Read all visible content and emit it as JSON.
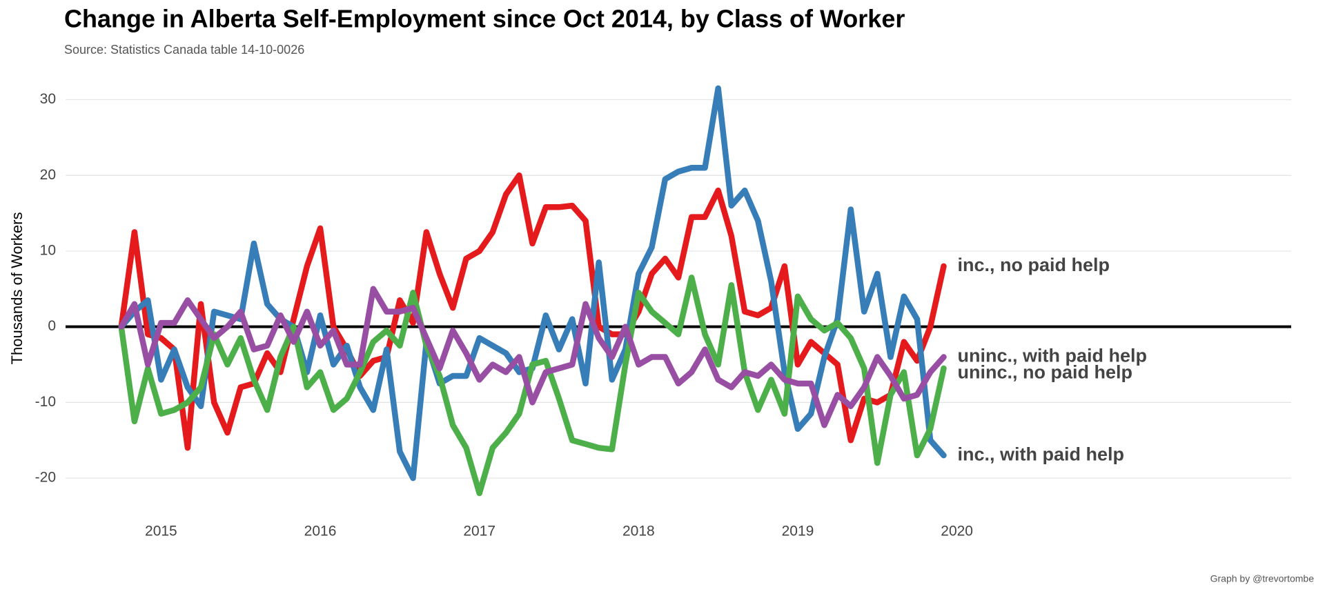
{
  "chart_data": {
    "type": "line",
    "title": "Change in Alberta Self-Employment since Oct 2014, by Class of Worker",
    "subtitle": "Source: Statistics Canada table 14-10-0026",
    "caption": "Graph by @trevortombe",
    "y_label": "Thousands of Workers",
    "x": [
      2014.75,
      2014.833,
      2014.917,
      2015,
      2015.083,
      2015.167,
      2015.25,
      2015.333,
      2015.417,
      2015.5,
      2015.583,
      2015.667,
      2015.75,
      2015.833,
      2015.917,
      2016,
      2016.083,
      2016.167,
      2016.25,
      2016.333,
      2016.417,
      2016.5,
      2016.583,
      2016.667,
      2016.75,
      2016.833,
      2016.917,
      2017,
      2017.083,
      2017.167,
      2017.25,
      2017.333,
      2017.417,
      2017.5,
      2017.583,
      2017.667,
      2017.75,
      2017.833,
      2017.917,
      2018,
      2018.083,
      2018.167,
      2018.25,
      2018.333,
      2018.417,
      2018.5,
      2018.583,
      2018.667,
      2018.75,
      2018.833,
      2018.917,
      2019,
      2019.083,
      2019.167,
      2019.25,
      2019.333,
      2019.417,
      2019.5,
      2019.583,
      2019.667,
      2019.75,
      2019.833,
      2019.917
    ],
    "series": [
      {
        "name": "inc., no paid help",
        "color": "#e41a1c",
        "values": [
          0,
          12.5,
          -1,
          -1.5,
          -3,
          -16,
          3,
          -10,
          -14,
          -8,
          -7.5,
          -3.5,
          -6,
          1,
          8,
          13,
          0,
          -3,
          -6.5,
          -4.5,
          -4,
          3.5,
          0.5,
          12.5,
          7,
          2.5,
          9,
          10,
          12.5,
          17.5,
          20,
          11,
          15.8,
          15.8,
          16,
          14,
          0,
          -1,
          -1,
          2,
          7,
          9,
          6.5,
          14.5,
          14.5,
          18,
          12,
          2,
          1.5,
          2.5,
          8,
          -5,
          -2,
          -3.5,
          -5,
          -15,
          -9.5,
          -10,
          -9,
          -2,
          -4.5,
          0,
          8
        ]
      },
      {
        "name": "inc., with paid help",
        "color": "#377eb8",
        "values": [
          0,
          2,
          3.5,
          -7,
          -3,
          -8,
          -10.5,
          2,
          1.5,
          1,
          11,
          3,
          1,
          0,
          -6,
          1.5,
          -5,
          -2.5,
          -8,
          -11,
          -3,
          -16.5,
          -20,
          -2,
          -7.5,
          -6.5,
          -6.5,
          -1.5,
          -2.5,
          -3.5,
          -6,
          -5.5,
          1.5,
          -3,
          1,
          -7.5,
          8.5,
          -7,
          -3,
          7,
          10.5,
          19.5,
          20.5,
          21,
          21,
          31.5,
          16,
          18,
          14,
          6,
          -6,
          -13.5,
          -11.5,
          -4,
          1,
          15.5,
          2,
          7,
          -4,
          4,
          1,
          -15,
          -17
        ]
      },
      {
        "name": "uninc., no paid help",
        "color": "#4daf4a",
        "values": [
          0,
          -12.5,
          -5.5,
          -11.5,
          -11,
          -10,
          -8,
          -1,
          -5,
          -1.5,
          -7,
          -11,
          -4,
          0,
          -8,
          -6,
          -11,
          -9.5,
          -6,
          -2,
          -0.5,
          -2.5,
          4.5,
          -2.5,
          -6.5,
          -13,
          -16,
          -22,
          -16,
          -14,
          -11.5,
          -5,
          -4.5,
          -9.5,
          -15,
          -15.5,
          -16,
          -16.2,
          -5,
          4.5,
          2,
          0.5,
          -1,
          6.5,
          -1,
          -5,
          5.5,
          -6,
          -11,
          -7,
          -11.5,
          4,
          1,
          -0.5,
          0.5,
          -1.5,
          -5.5,
          -18,
          -9,
          -6,
          -17,
          -13.5,
          -5.5
        ]
      },
      {
        "name": "uninc., with paid help",
        "color": "#984ea3",
        "values": [
          0,
          3,
          -5,
          0.5,
          0.5,
          3.5,
          1,
          -1.5,
          0,
          2,
          -3,
          -2.5,
          1.5,
          -2,
          2,
          -2.5,
          -0.5,
          -5,
          -5,
          5,
          2,
          2,
          2.5,
          -1.5,
          -5.5,
          -0.5,
          -3.5,
          -7,
          -5,
          -6,
          -4,
          -10,
          -6,
          -5.5,
          -5,
          3,
          -1.5,
          -4,
          0,
          -5,
          -4,
          -4,
          -7.5,
          -6,
          -3,
          -7,
          -8,
          -6,
          -6.5,
          -5,
          -7,
          -7.5,
          -7.5,
          -13,
          -9,
          -10.5,
          -8,
          -4,
          -6.5,
          -9.5,
          -9,
          -6,
          -4
        ]
      }
    ],
    "xlim": [
      2014.4,
      2022.1
    ],
    "xticks": [
      2015,
      2016,
      2017,
      2018,
      2019,
      2020
    ],
    "ylim": [
      -23,
      33
    ],
    "yticks": [
      -20,
      -10,
      0,
      10,
      20,
      30
    ],
    "grid": true,
    "reference_line": 0
  }
}
